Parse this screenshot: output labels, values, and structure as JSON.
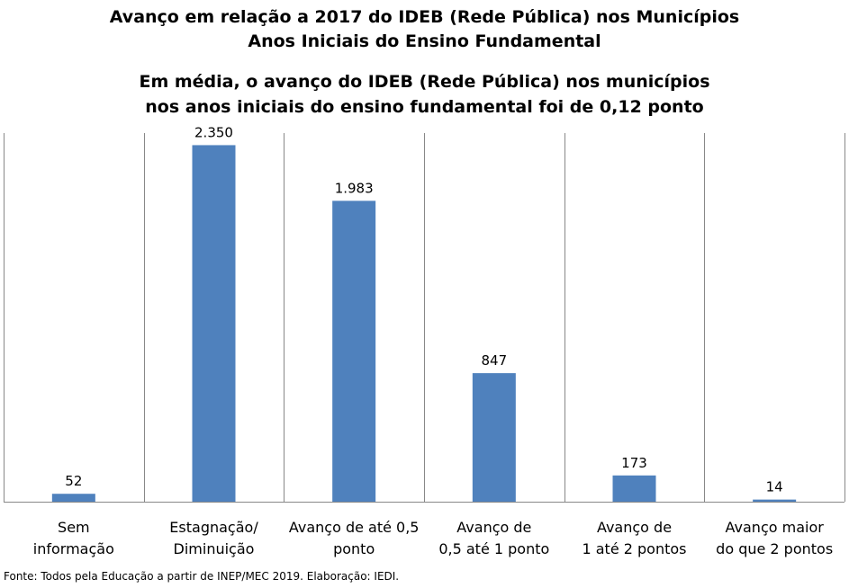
{
  "chart_data": {
    "type": "bar",
    "title": [
      "Avanço em relação a 2017 do IDEB (Rede Pública) nos Municípios",
      "Anos Iniciais do Ensino Fundamental"
    ],
    "subtitle": [
      "Em média, o avanço do IDEB (Rede Pública) nos municípios",
      "nos anos iniciais do ensino fundamental foi de 0,12 ponto"
    ],
    "categories": [
      [
        "Sem",
        "informação"
      ],
      [
        "Estagnação/",
        "Diminuição"
      ],
      [
        "Avanço de até 0,5",
        "ponto"
      ],
      [
        "Avanço de",
        "0,5 até 1 ponto"
      ],
      [
        "Avanço de",
        "1 até 2 pontos"
      ],
      [
        "Avanço maior",
        "do que 2 pontos"
      ]
    ],
    "values": [
      52,
      2350,
      1983,
      847,
      173,
      14
    ],
    "value_labels": [
      "52",
      "2.350",
      "1.983",
      "847",
      "173",
      "14"
    ],
    "ylim": [
      0,
      2500
    ],
    "bar_color": "#4f81bd",
    "grid": false,
    "legend": "none",
    "source": "Fonte: Todos pela Educação a partir de INEP/MEC 2019. Elaboração: IEDI."
  }
}
